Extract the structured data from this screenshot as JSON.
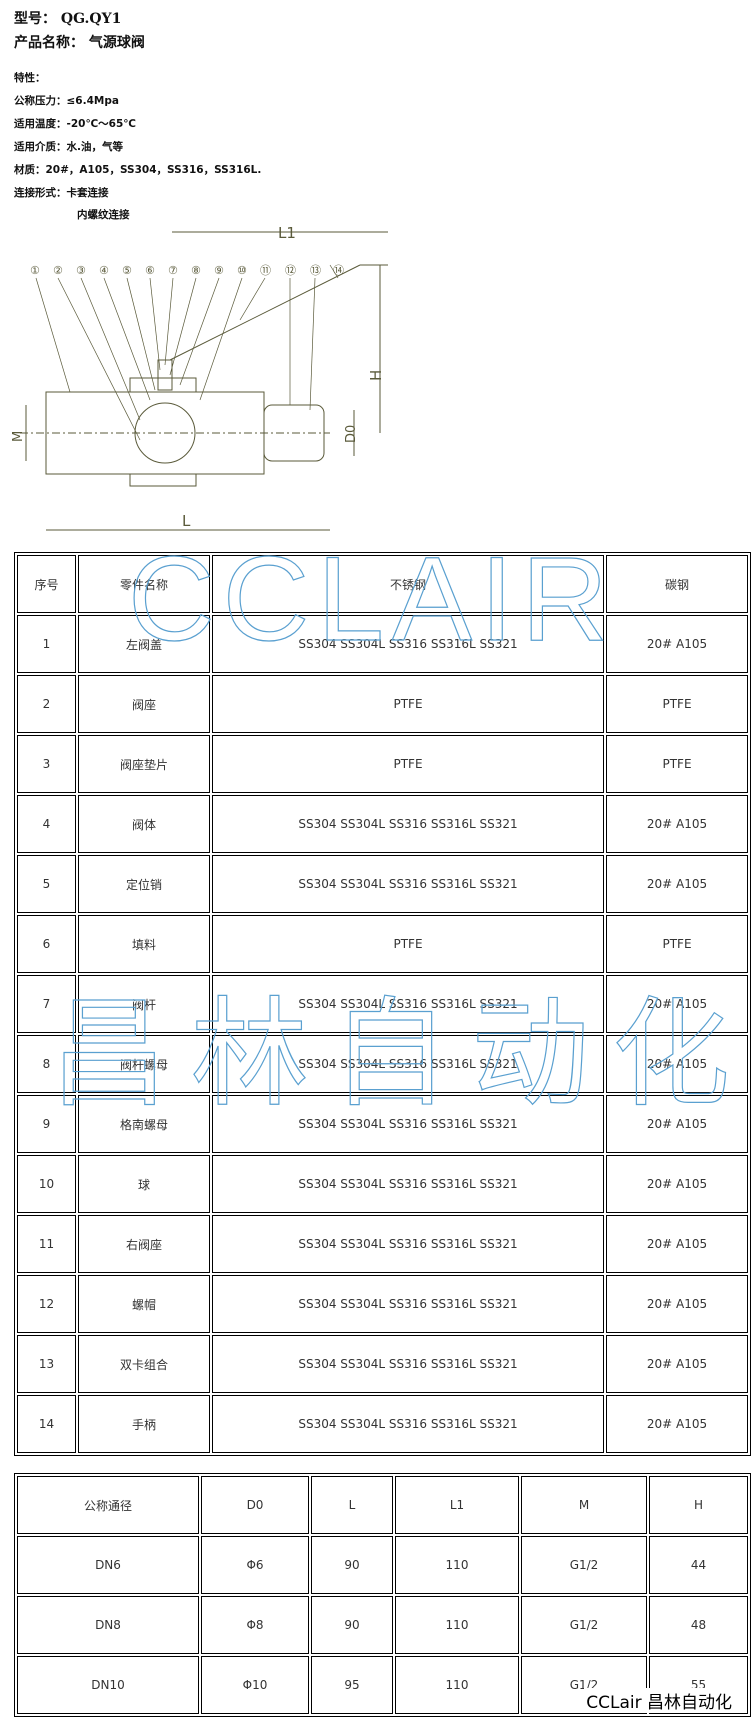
{
  "header": {
    "model_label": "型号：",
    "model": "QG.QY1",
    "name_label": "产品名称：",
    "name": "气源球阀"
  },
  "specs": [
    "特性：",
    "公称压力：≤6.4Mpa",
    "适用温度：-20℃～65℃",
    "适用介质：水.油，气等",
    "材质：20#，A105，SS304，SS316，SS316L.",
    "连接形式：卡套连接",
    "内螺纹连接"
  ],
  "diagram": {
    "labels": {
      "L1": "L1",
      "H": "H",
      "M": "M",
      "D0": "D0",
      "L": "L"
    },
    "callouts": [
      "①",
      "②",
      "③",
      "④",
      "⑤",
      "⑥",
      "⑦",
      "⑧",
      "⑨",
      "⑩",
      "⑪",
      "⑫",
      "⑬",
      "⑭"
    ],
    "line_color": "#5a5a3a"
  },
  "parts_table": {
    "headers": [
      "序号",
      "零件名称",
      "不锈钢",
      "碳钢"
    ],
    "rows": [
      [
        "1",
        "左阀盖",
        "SS304 SS304L SS316 SS316L SS321",
        "20# A105"
      ],
      [
        "2",
        "阀座",
        "PTFE",
        "PTFE"
      ],
      [
        "3",
        "阀座垫片",
        "PTFE",
        "PTFE"
      ],
      [
        "4",
        "阀体",
        "SS304 SS304L SS316 SS316L SS321",
        "20# A105"
      ],
      [
        "5",
        "定位销",
        "SS304 SS304L SS316 SS316L SS321",
        "20# A105"
      ],
      [
        "6",
        "填料",
        "PTFE",
        "PTFE"
      ],
      [
        "7",
        "阀杆",
        "SS304 SS304L SS316 SS316L SS321",
        "20# A105"
      ],
      [
        "8",
        "阀杆螺母",
        "SS304 SS304L SS316 SS316L SS321",
        "20# A105"
      ],
      [
        "9",
        "格南螺母",
        "SS304 SS304L SS316 SS316L SS321",
        "20# A105"
      ],
      [
        "10",
        "球",
        "SS304 SS304L SS316 SS316L SS321",
        "20# A105"
      ],
      [
        "11",
        "右阀座",
        "SS304 SS304L SS316 SS316L SS321",
        "20# A105"
      ],
      [
        "12",
        "螺帽",
        "SS304 SS304L SS316 SS316L SS321",
        "20# A105"
      ],
      [
        "13",
        "双卡组合",
        "SS304 SS304L SS316 SS316L SS321",
        "20# A105"
      ],
      [
        "14",
        "手柄",
        "SS304 SS304L SS316 SS316L SS321",
        "20# A105"
      ]
    ]
  },
  "dimension_table": {
    "headers": [
      "公称通径",
      "D0",
      "L",
      "L1",
      "M",
      "H"
    ],
    "rows": [
      [
        "DN6",
        "Φ6",
        "90",
        "110",
        "G1/2",
        "44"
      ],
      [
        "DN8",
        "Φ8",
        "90",
        "110",
        "G1/2",
        "48"
      ],
      [
        "DN10",
        "Φ10",
        "95",
        "110",
        "G1/2",
        "55"
      ]
    ]
  },
  "watermarks": {
    "latin": "CCLAIR",
    "chinese": "昌林自动化",
    "color": "#5aa0d0"
  },
  "stamp": "CCLair 昌林自动化"
}
